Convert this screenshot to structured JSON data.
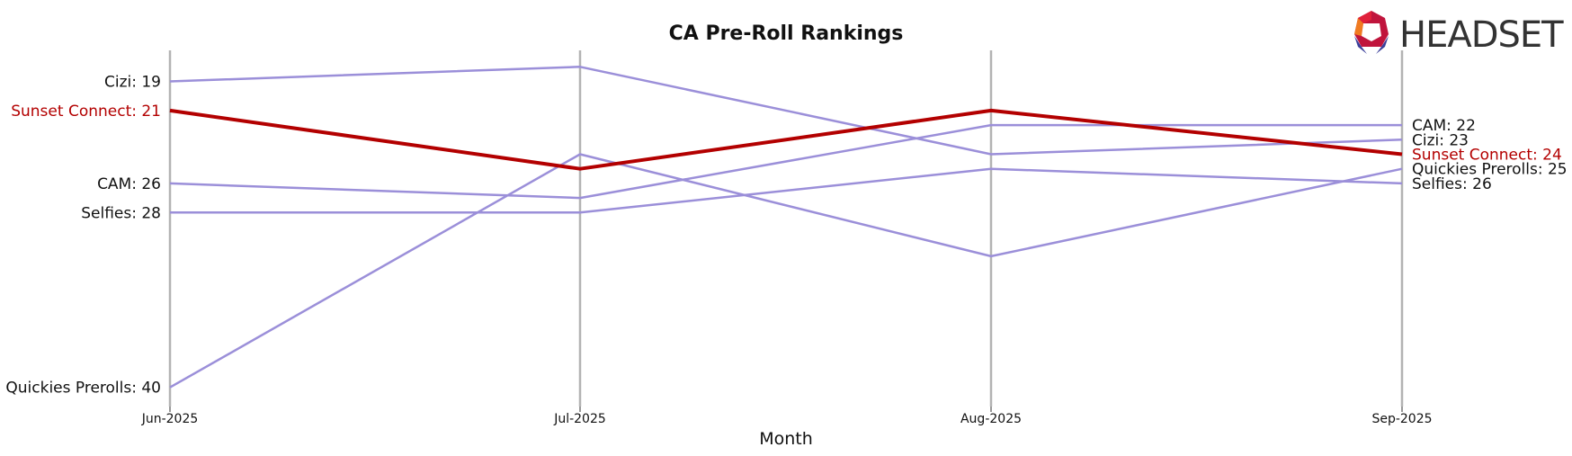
{
  "chart_data": {
    "type": "line",
    "title": "CA Pre-Roll Rankings",
    "xlabel": "Month",
    "ylabel": "",
    "categories": [
      "Jun-2025",
      "Jul-2025",
      "Aug-2025",
      "Sep-2025"
    ],
    "y_axis": "rank (inverted: 1 at top)",
    "ylim": [
      17,
      42
    ],
    "grid": "vertical lines at each month",
    "series": [
      {
        "name": "Cizi",
        "values": [
          19,
          18,
          24,
          23
        ],
        "color": "#9b8fd9",
        "highlight": false
      },
      {
        "name": "Sunset Connect",
        "values": [
          21,
          25,
          21,
          24
        ],
        "color": "#b30000",
        "highlight": true
      },
      {
        "name": "CAM",
        "values": [
          26,
          27,
          22,
          22
        ],
        "color": "#9b8fd9",
        "highlight": false
      },
      {
        "name": "Selfies",
        "values": [
          28,
          28,
          25,
          26
        ],
        "color": "#9b8fd9",
        "highlight": false
      },
      {
        "name": "Quickies Prerolls",
        "values": [
          40,
          24,
          31,
          25
        ],
        "color": "#9b8fd9",
        "highlight": false
      }
    ],
    "left_labels": [
      {
        "text": "Cizi: 19",
        "series": "Cizi"
      },
      {
        "text": "Sunset Connect: 21",
        "series": "Sunset Connect"
      },
      {
        "text": "CAM: 26",
        "series": "CAM"
      },
      {
        "text": "Selfies: 28",
        "series": "Selfies"
      },
      {
        "text": "Quickies Prerolls: 40",
        "series": "Quickies Prerolls"
      }
    ],
    "right_labels": [
      {
        "text": "CAM: 22",
        "series": "CAM"
      },
      {
        "text": "Cizi: 23",
        "series": "Cizi"
      },
      {
        "text": "Sunset Connect: 24",
        "series": "Sunset Connect"
      },
      {
        "text": "Quickies Prerolls: 25",
        "series": "Quickies Prerolls"
      },
      {
        "text": "Selfies: 26",
        "series": "Selfies"
      }
    ]
  },
  "logo": {
    "text": "HEADSET"
  }
}
